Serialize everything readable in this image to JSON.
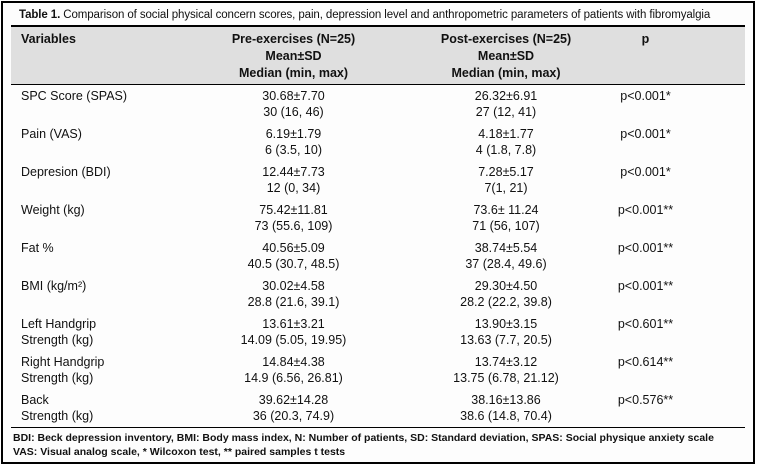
{
  "table": {
    "title": {
      "label": "Table 1.",
      "text": "Comparison of social physical concern scores, pain, depression level and anthropometric parameters of patients with fibromyalgia"
    },
    "header": {
      "variables": "Variables",
      "pre": {
        "line1": "Pre-exercises (N=25)",
        "line2": "Mean±SD",
        "line3": "Median (min, max)"
      },
      "post": {
        "line1": "Post-exercises (N=25)",
        "line2": "Mean±SD",
        "line3": "Median (min, max)"
      },
      "p": "p"
    },
    "rows": [
      {
        "variable1": "SPC Score (SPAS)",
        "variable2": "",
        "pre_mean": "30.68±7.70",
        "pre_median": "30 (16, 46)",
        "post_mean": "26.32±6.91",
        "post_median": "27 (12, 41)",
        "p": "p<0.001*"
      },
      {
        "variable1": "Pain (VAS)",
        "variable2": "",
        "pre_mean": "6.19±1.79",
        "pre_median": "6 (3.5, 10)",
        "post_mean": "4.18±1.77",
        "post_median": "4 (1.8, 7.8)",
        "p": "p<0.001*"
      },
      {
        "variable1": "Depresion (BDI)",
        "variable2": "",
        "pre_mean": "12.44±7.73",
        "pre_median": "12 (0, 34)",
        "post_mean": "7.28±5.17",
        "post_median": "7(1, 21)",
        "p": "p<0.001*"
      },
      {
        "variable1": "Weight (kg)",
        "variable2": "",
        "pre_mean": "75.42±11.81",
        "pre_median": "73 (55.6, 109)",
        "post_mean": "73.6± 11.24",
        "post_median": "71 (56, 107)",
        "p": "p<0.001**"
      },
      {
        "variable1": "Fat %",
        "variable2": "",
        "pre_mean": "40.56±5.09",
        "pre_median": "40.5 (30.7, 48.5)",
        "post_mean": "38.74±5.54",
        "post_median": "37 (28.4, 49.6)",
        "p": "p<0.001**"
      },
      {
        "variable1": "BMI (kg/m²)",
        "variable2": "",
        "pre_mean": "30.02±4.58",
        "pre_median": "28.8 (21.6, 39.1)",
        "post_mean": "29.30±4.50",
        "post_median": "28.2 (22.2, 39.8)",
        "p": "p<0.001**"
      },
      {
        "variable1": "Left Handgrip",
        "variable2": "Strength (kg)",
        "pre_mean": "13.61±3.21",
        "pre_median": "14.09 (5.05, 19.95)",
        "post_mean": "13.90±3.15",
        "post_median": "13.63 (7.7, 20.5)",
        "p": "p<0.601**"
      },
      {
        "variable1": "Right Handgrip",
        "variable2": "Strength (kg)",
        "pre_mean": "14.84±4.38",
        "pre_median": "14.9 (6.56, 26.81)",
        "post_mean": "13.74±3.12",
        "post_median": "13.75 (6.78, 21.12)",
        "p": "p<0.614**"
      },
      {
        "variable1": "Back",
        "variable2": "Strength (kg)",
        "pre_mean": "39.62±14.28",
        "pre_median": "36 (20.3, 74.9)",
        "post_mean": "38.16±13.86",
        "post_median": "38.6 (14.8, 70.4)",
        "p": "p<0.576**"
      }
    ],
    "footnotes": {
      "line1": "BDI: Beck depression inventory, BMI: Body mass index, N: Number of patients, SD: Standard deviation, SPAS: Social physique anxiety scale",
      "line2": "VAS: Visual analog scale, * Wilcoxon test, ** paired samples t tests"
    }
  },
  "colors": {
    "header_bg": "#dfdfdf",
    "border": "#000000",
    "text": "#111111"
  }
}
